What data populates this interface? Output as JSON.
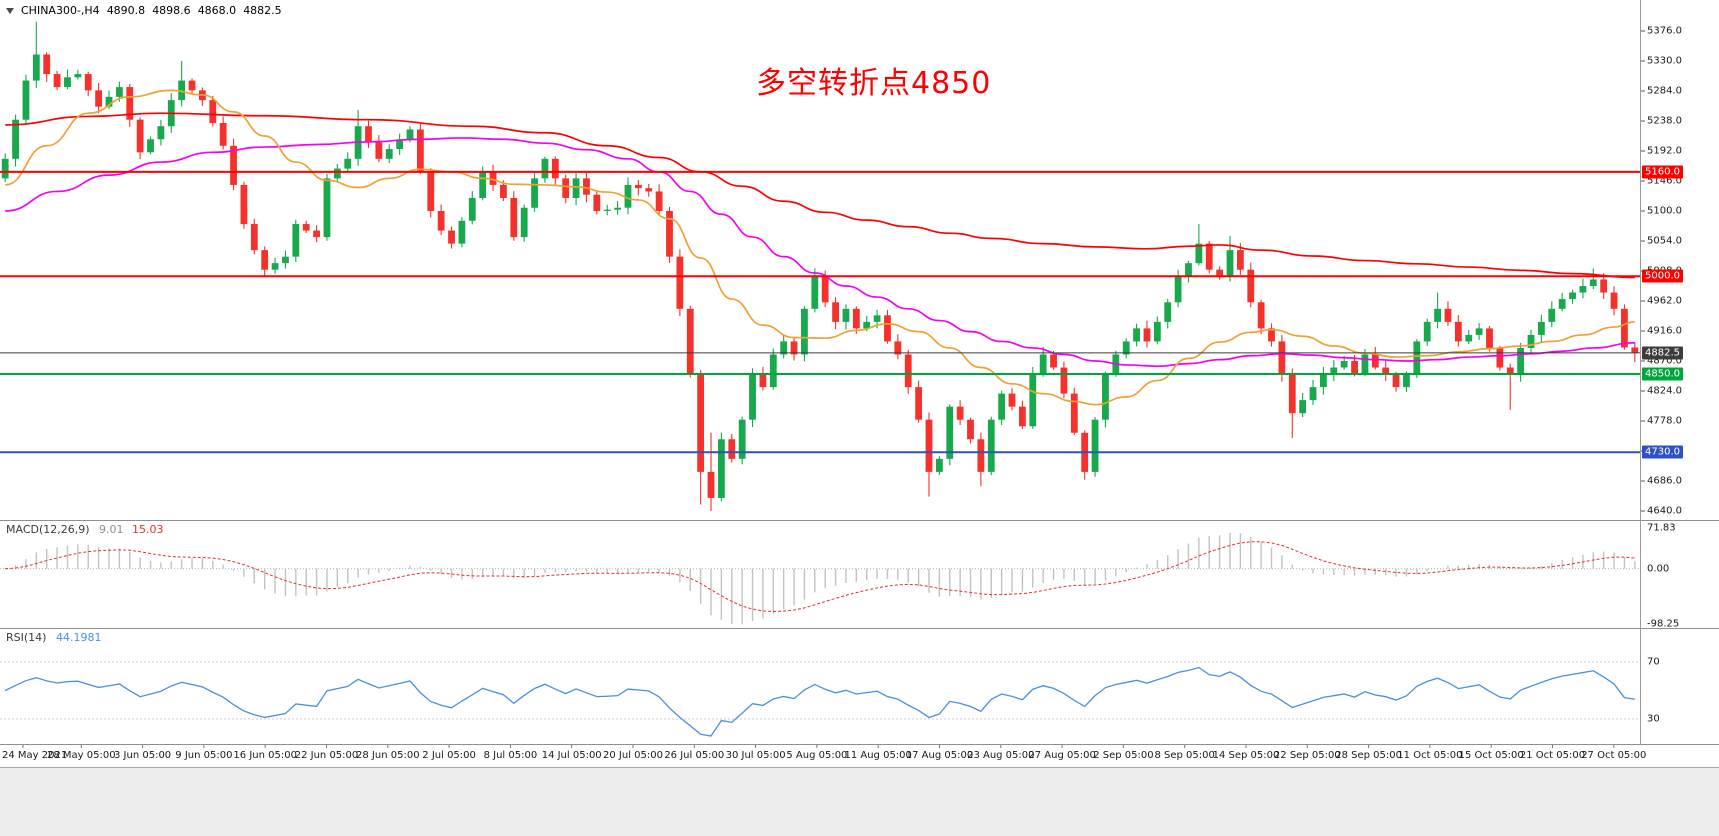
{
  "header": {
    "symbol_period": "CHINA300-,H4",
    "open": "4890.8",
    "high": "4898.6",
    "low": "4868.0",
    "close": "4882.5"
  },
  "colors": {
    "candle_up": "#18A94C",
    "candle_down": "#F4322B",
    "macd_hist": "#C2C2C2",
    "macd_signal": "#E03030",
    "rsi_line": "#4A90D9",
    "guide": "#C8C8C8",
    "axis_text": "#1A1A1A",
    "level_current": "#3C3C3C"
  },
  "chart_data": [
    {
      "type": "candlestick",
      "title": "CHINA300-,H4",
      "ylim": [
        4640,
        5376
      ],
      "y_ticks": [
        "5376.0",
        "5330.0",
        "5284.0",
        "5238.0",
        "5192.0",
        "5146.0",
        "5100.0",
        "5054.0",
        "5008.0",
        "4962.0",
        "4916.0",
        "4870.0",
        "4824.0",
        "4778.0",
        "4732.0",
        "4686.0",
        "4640.0"
      ],
      "x_labels": [
        "24 May 2021",
        "28 May 05:00",
        "3 Jun 05:00",
        "9 Jun 05:00",
        "16 Jun 05:00",
        "22 Jun 05:00",
        "28 Jun 05:00",
        "2 Jul 05:00",
        "8 Jul 05:00",
        "14 Jul 05:00",
        "20 Jul 05:00",
        "26 Jul 05:00",
        "30 Jul 05:00",
        "5 Aug 05:00",
        "11 Aug 05:00",
        "17 Aug 05:00",
        "23 Aug 05:00",
        "27 Aug 05:00",
        "2 Sep 05:00",
        "8 Sep 05:00",
        "14 Sep 05:00",
        "22 Sep 05:00",
        "28 Sep 05:00",
        "11 Oct 05:00",
        "15 Oct 05:00",
        "21 Oct 05:00",
        "27 Oct 05:00"
      ],
      "first_open": 5150,
      "closes": [
        5180,
        5240,
        5300,
        5340,
        5310,
        5290,
        5305,
        5310,
        5285,
        5260,
        5275,
        5290,
        5240,
        5190,
        5210,
        5230,
        5270,
        5300,
        5285,
        5270,
        5235,
        5200,
        5140,
        5080,
        5040,
        5010,
        5020,
        5030,
        5080,
        5070,
        5060,
        5150,
        5165,
        5180,
        5230,
        5205,
        5180,
        5195,
        5210,
        5225,
        5160,
        5100,
        5070,
        5050,
        5085,
        5120,
        5160,
        5140,
        5120,
        5060,
        5105,
        5150,
        5180,
        5150,
        5120,
        5150,
        5125,
        5100,
        5102,
        5105,
        5140,
        5135,
        5130,
        5100,
        5030,
        4950,
        4850,
        4700,
        4660,
        4750,
        4720,
        4780,
        4850,
        4830,
        4880,
        4900,
        4880,
        4950,
        5000,
        4960,
        4930,
        4950,
        4920,
        4930,
        4940,
        4900,
        4880,
        4830,
        4780,
        4700,
        4720,
        4800,
        4780,
        4750,
        4700,
        4780,
        4820,
        4800,
        4770,
        4850,
        4880,
        4860,
        4820,
        4760,
        4700,
        4780,
        4850,
        4880,
        4900,
        4920,
        4900,
        4930,
        4960,
        5000,
        5020,
        5050,
        5010,
        5000,
        5040,
        5010,
        4960,
        4920,
        4900,
        4850,
        4790,
        4810,
        4830,
        4850,
        4860,
        4870,
        4850,
        4880,
        4860,
        4850,
        4830,
        4850,
        4900,
        4930,
        4950,
        4930,
        4900,
        4910,
        4920,
        4890,
        4860,
        4850,
        4890,
        4910,
        4930,
        4950,
        4965,
        4975,
        4985,
        4995,
        4975,
        4950,
        4890.8,
        4882.5
      ],
      "wick_overrides": {
        "3": [
          5390,
          null
        ],
        "17": [
          5330,
          null
        ],
        "34": [
          5255,
          null
        ],
        "67": [
          null,
          4650
        ],
        "68": [
          4760,
          4640
        ],
        "78": [
          5012,
          null
        ],
        "89": [
          null,
          4662
        ],
        "94": [
          null,
          4678
        ],
        "104": [
          null,
          4688
        ],
        "115": [
          5080,
          null
        ],
        "118": [
          5062,
          null
        ],
        "124": [
          null,
          4752
        ],
        "138": [
          4975,
          null
        ],
        "145": [
          null,
          4795
        ],
        "153": [
          5012,
          null
        ],
        "157": [
          4898.6,
          4868.0
        ]
      },
      "series": [
        {
          "name": "ma-slow",
          "color": "#FF0000",
          "points": [
            [
              0,
              5232
            ],
            [
              8,
              5245
            ],
            [
              15,
              5250
            ],
            [
              25,
              5246
            ],
            [
              35,
              5240
            ],
            [
              45,
              5230
            ],
            [
              52,
              5220
            ],
            [
              58,
              5200
            ],
            [
              63,
              5182
            ],
            [
              67,
              5160
            ],
            [
              71,
              5138
            ],
            [
              75,
              5115
            ],
            [
              79,
              5098
            ],
            [
              83,
              5086
            ],
            [
              87,
              5076
            ],
            [
              91,
              5066
            ],
            [
              95,
              5058
            ],
            [
              100,
              5050
            ],
            [
              105,
              5045
            ],
            [
              110,
              5042
            ],
            [
              114,
              5046
            ],
            [
              117,
              5048
            ],
            [
              121,
              5040
            ],
            [
              126,
              5031
            ],
            [
              131,
              5024
            ],
            [
              136,
              5019
            ],
            [
              141,
              5014
            ],
            [
              146,
              5009
            ],
            [
              151,
              5004
            ],
            [
              157,
              4998
            ]
          ]
        },
        {
          "name": "ma-medium",
          "color": "#F500F5",
          "points": [
            [
              0,
              5100
            ],
            [
              5,
              5130
            ],
            [
              10,
              5155
            ],
            [
              15,
              5175
            ],
            [
              20,
              5190
            ],
            [
              25,
              5198
            ],
            [
              30,
              5202
            ],
            [
              35,
              5206
            ],
            [
              40,
              5210
            ],
            [
              44,
              5212
            ],
            [
              48,
              5210
            ],
            [
              52,
              5204
            ],
            [
              56,
              5194
            ],
            [
              60,
              5180
            ],
            [
              63,
              5160
            ],
            [
              66,
              5130
            ],
            [
              69,
              5095
            ],
            [
              72,
              5060
            ],
            [
              75,
              5030
            ],
            [
              78,
              5005
            ],
            [
              81,
              4985
            ],
            [
              84,
              4968
            ],
            [
              87,
              4950
            ],
            [
              90,
              4932
            ],
            [
              93,
              4915
            ],
            [
              96,
              4900
            ],
            [
              99,
              4890
            ],
            [
              102,
              4880
            ],
            [
              105,
              4870
            ],
            [
              108,
              4864
            ],
            [
              111,
              4862
            ],
            [
              114,
              4866
            ],
            [
              117,
              4872
            ],
            [
              120,
              4878
            ],
            [
              123,
              4881
            ],
            [
              126,
              4879
            ],
            [
              129,
              4875
            ],
            [
              132,
              4872
            ],
            [
              135,
              4870
            ],
            [
              138,
              4872
            ],
            [
              141,
              4876
            ],
            [
              144,
              4878
            ],
            [
              147,
              4881
            ],
            [
              150,
              4885
            ],
            [
              153,
              4890
            ],
            [
              157,
              4898
            ]
          ]
        },
        {
          "name": "ma-fast",
          "color": "#EFA133",
          "points": [
            [
              0,
              5140
            ],
            [
              4,
              5200
            ],
            [
              8,
              5250
            ],
            [
              12,
              5275
            ],
            [
              16,
              5285
            ],
            [
              19,
              5278
            ],
            [
              22,
              5252
            ],
            [
              25,
              5215
            ],
            [
              28,
              5175
            ],
            [
              31,
              5147
            ],
            [
              34,
              5136
            ],
            [
              37,
              5150
            ],
            [
              40,
              5164
            ],
            [
              43,
              5160
            ],
            [
              46,
              5150
            ],
            [
              49,
              5141
            ],
            [
              52,
              5140
            ],
            [
              55,
              5137
            ],
            [
              58,
              5129
            ],
            [
              61,
              5117
            ],
            [
              64,
              5088
            ],
            [
              67,
              5028
            ],
            [
              70,
              4965
            ],
            [
              73,
              4925
            ],
            [
              76,
              4906
            ],
            [
              79,
              4905
            ],
            [
              82,
              4917
            ],
            [
              85,
              4927
            ],
            [
              88,
              4915
            ],
            [
              91,
              4890
            ],
            [
              94,
              4860
            ],
            [
              97,
              4835
            ],
            [
              100,
              4820
            ],
            [
              103,
              4808
            ],
            [
              105,
              4803
            ],
            [
              108,
              4815
            ],
            [
              111,
              4840
            ],
            [
              114,
              4874
            ],
            [
              117,
              4899
            ],
            [
              120,
              4914
            ],
            [
              122,
              4918
            ],
            [
              125,
              4908
            ],
            [
              128,
              4893
            ],
            [
              131,
              4882
            ],
            [
              134,
              4876
            ],
            [
              137,
              4878
            ],
            [
              140,
              4884
            ],
            [
              143,
              4889
            ],
            [
              146,
              4893
            ],
            [
              149,
              4900
            ],
            [
              152,
              4910
            ],
            [
              155,
              4922
            ],
            [
              157,
              4930
            ]
          ]
        }
      ],
      "hlines": [
        {
          "label": "5160.0",
          "price": 5160,
          "color": "#FF0000"
        },
        {
          "label": "5000.0",
          "price": 5000,
          "color": "#FF0000"
        },
        {
          "label": "4882.5",
          "price": 4882.5,
          "color": "#3C3C3C",
          "current": true
        },
        {
          "label": "4850.0",
          "price": 4850,
          "color": "#00A63C"
        },
        {
          "label": "4730.0",
          "price": 4730,
          "color": "#2E51C8"
        }
      ],
      "annotations": [
        {
          "text": "多空转折点4850",
          "color": "#FF0000"
        }
      ]
    },
    {
      "type": "macd_histogram",
      "label": "MACD(12,26,9)",
      "params": [
        12,
        26,
        9
      ],
      "main_value": "9.01",
      "signal_value": "15.03",
      "ylim": [
        -98.25,
        71.83
      ],
      "scale_labels": [
        "71.83",
        "0.00",
        "-98.25"
      ]
    },
    {
      "type": "line",
      "label": "RSI(14)",
      "period": 14,
      "value": "44.1981",
      "guides": [
        70,
        30
      ],
      "scale_labels": [
        "70",
        "30"
      ]
    }
  ]
}
